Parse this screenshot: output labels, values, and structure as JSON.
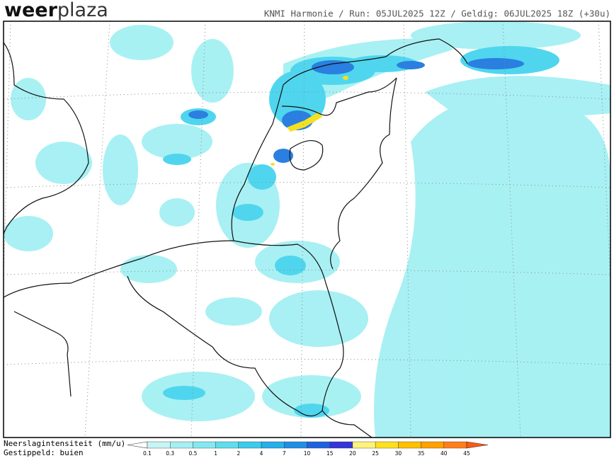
{
  "logo": {
    "part1": "weer",
    "part2": "plaza"
  },
  "header": {
    "run_info": "KNMI Harmonie / Run: 05JUL2025 12Z / Geldig: 06JUL2025 18Z (+30u)"
  },
  "legend": {
    "title": "Neerslagintensiteit (mm/u)",
    "note": "Gestippeld: buien",
    "ticks": [
      0.1,
      0.3,
      0.5,
      1,
      2,
      4,
      7,
      10,
      15,
      20,
      25,
      30,
      35,
      40,
      45
    ]
  }
}
